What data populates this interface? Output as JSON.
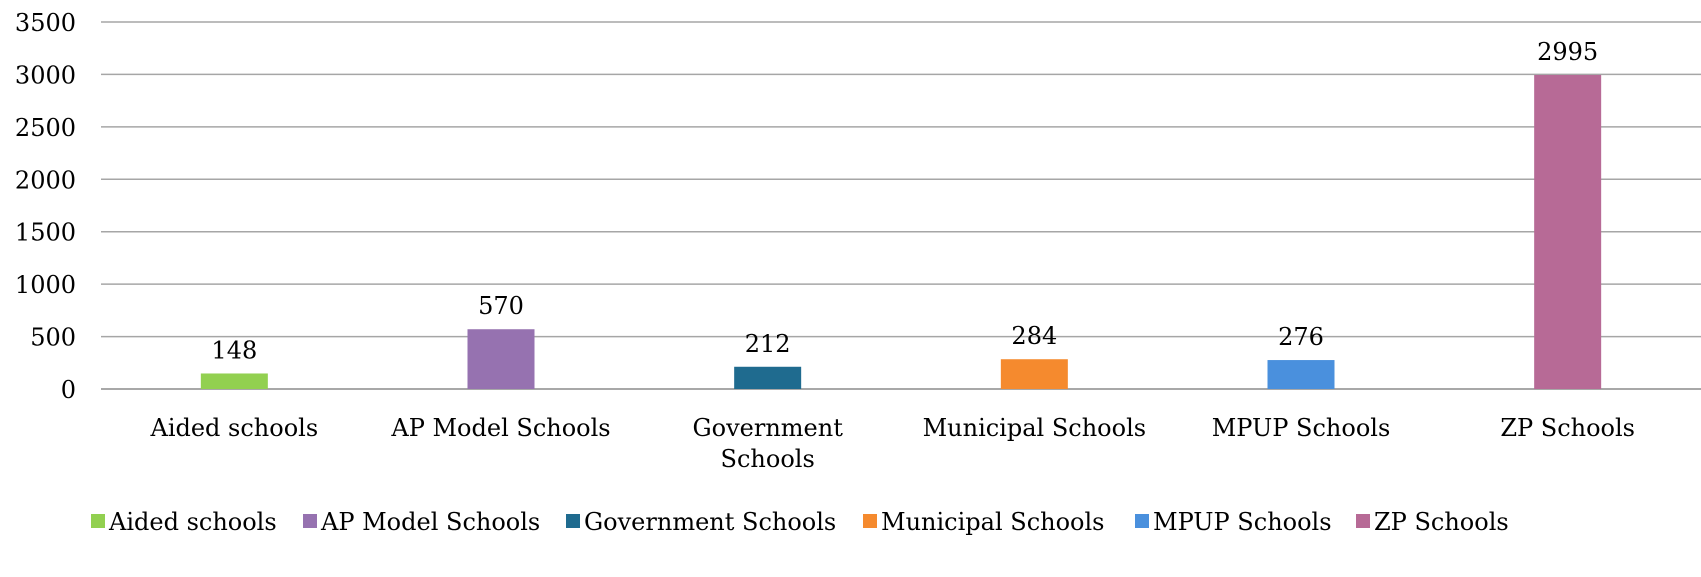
{
  "chart_data": {
    "type": "bar",
    "title": "",
    "xlabel": "",
    "ylabel": "",
    "ylim": [
      0,
      3500
    ],
    "yticks": [
      0,
      500,
      1000,
      1500,
      2000,
      2500,
      3000,
      3500
    ],
    "grid": true,
    "legend_position": "bottom",
    "categories": [
      "Aided schools",
      "AP Model Schools",
      "Government Schools",
      "Municipal Schools",
      "MPUP Schools",
      "ZP Schools"
    ],
    "category_labels": [
      [
        "Aided schools"
      ],
      [
        "AP Model Schools"
      ],
      [
        "Government",
        "Schools"
      ],
      [
        "Municipal Schools"
      ],
      [
        "MPUP Schools"
      ],
      [
        "ZP Schools"
      ]
    ],
    "values": [
      148,
      570,
      212,
      284,
      276,
      2995
    ],
    "colors": [
      "#92D050",
      "#9672B0",
      "#1F6B8F",
      "#F58A2E",
      "#4A90DD",
      "#B76A96"
    ],
    "legend": [
      "Aided schools",
      "AP Model Schools",
      "Government Schools",
      "Municipal Schools",
      "MPUP Schools",
      "ZP Schools"
    ]
  }
}
